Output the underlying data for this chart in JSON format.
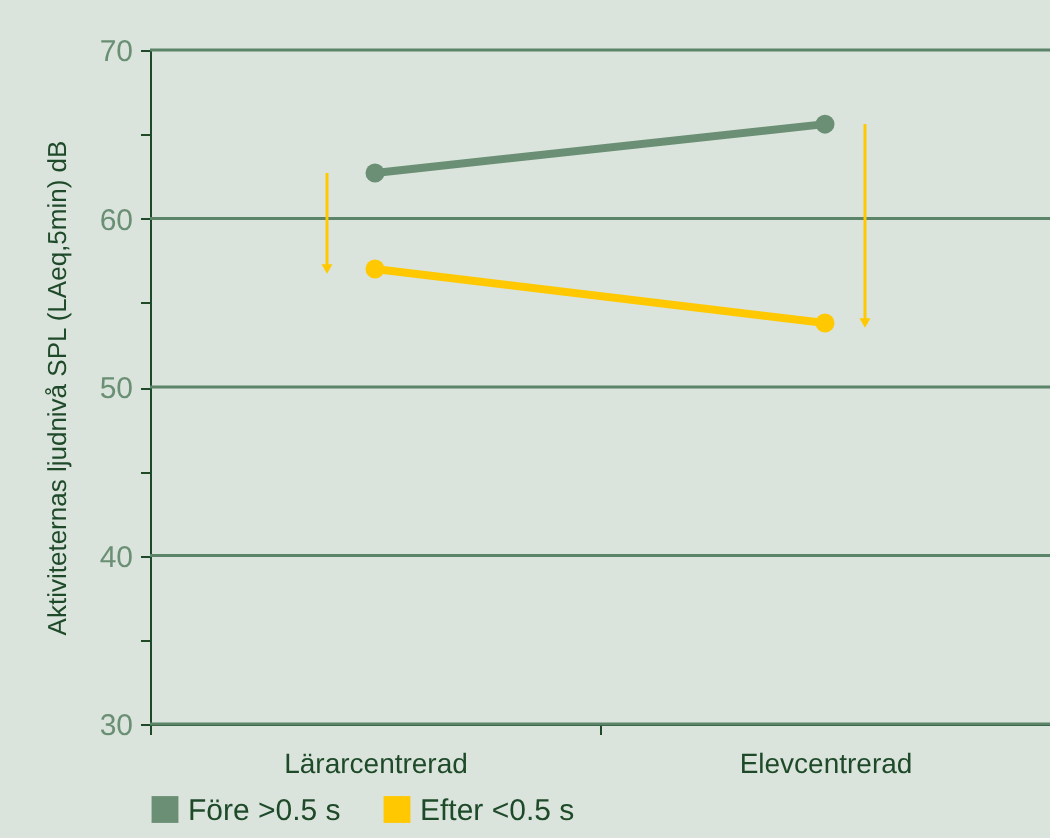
{
  "chart_data": {
    "type": "line",
    "ylabel": "Aktiviteternas ljudnivå SPL (LAeq,5min) dB",
    "categories": [
      "Lärarcentrerad",
      "Elevcentrerad"
    ],
    "series": [
      {
        "name": "Före >0.5 s",
        "color": "#6a8f74",
        "values": [
          62.7,
          65.6
        ]
      },
      {
        "name": "Efter <0.5 s",
        "color": "#ffc800",
        "values": [
          57.0,
          53.8
        ]
      }
    ],
    "ylim": [
      30,
      70
    ],
    "yticks": [
      30,
      {
        "value": 35,
        "label": null
      },
      40,
      {
        "value": 45,
        "label": null
      },
      50,
      {
        "value": 55,
        "label": null
      },
      60,
      {
        "value": 65,
        "label": null
      },
      70
    ],
    "grid": "y",
    "marker": "circle",
    "legend": "bottom left"
  }
}
